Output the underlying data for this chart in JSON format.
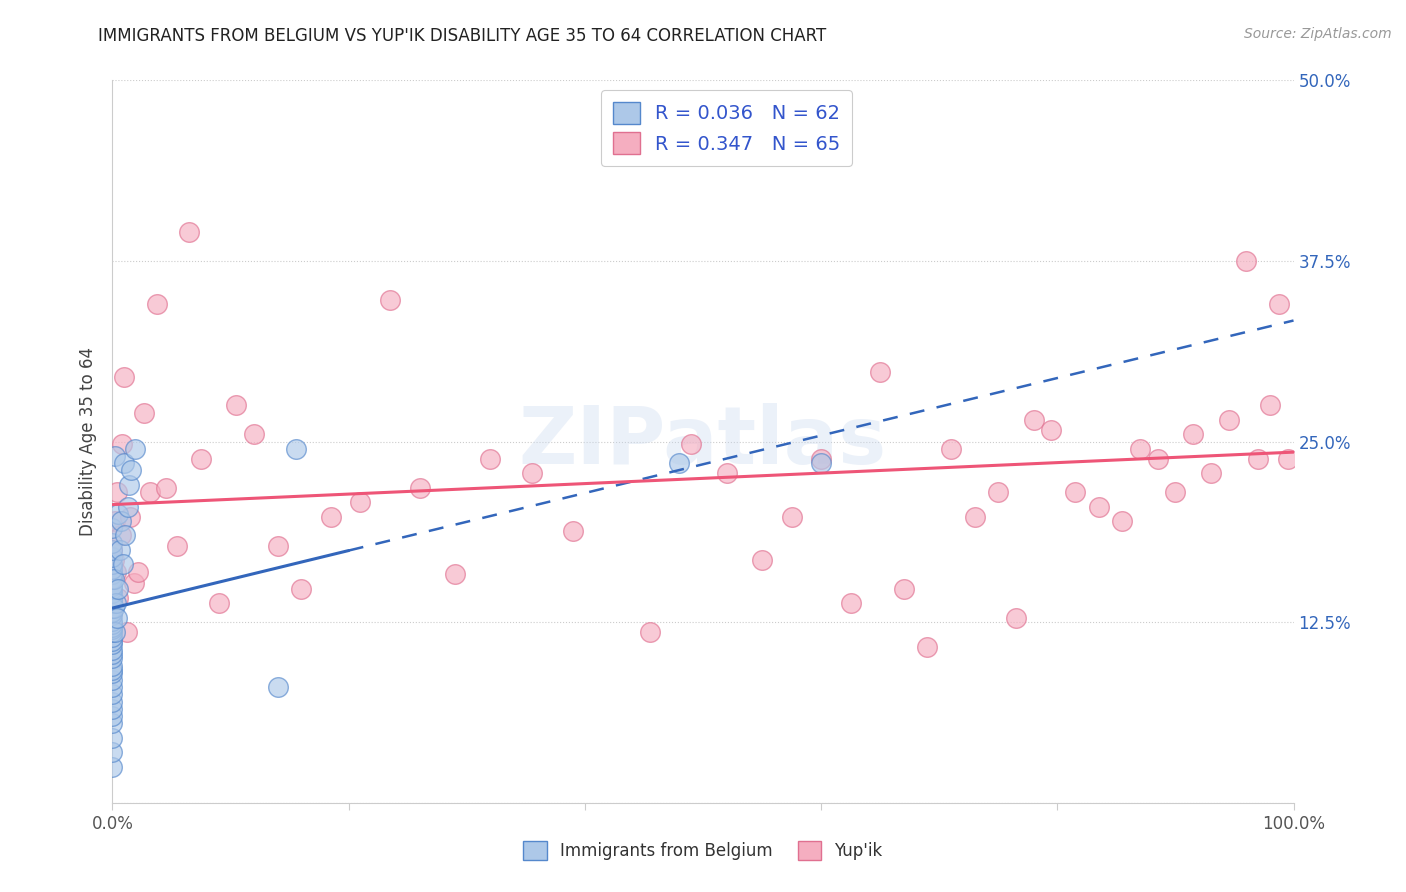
{
  "title": "IMMIGRANTS FROM BELGIUM VS YUP'IK DISABILITY AGE 35 TO 64 CORRELATION CHART",
  "source": "Source: ZipAtlas.com",
  "ylabel": "Disability Age 35 to 64",
  "xlim": [
    0,
    1.0
  ],
  "ylim": [
    0,
    0.5
  ],
  "xticks": [
    0.0,
    0.2,
    0.4,
    0.6,
    0.8,
    1.0
  ],
  "xticklabels": [
    "0.0%",
    "",
    "",
    "",
    "",
    "100.0%"
  ],
  "yticks": [
    0.0,
    0.125,
    0.25,
    0.375,
    0.5
  ],
  "yticklabels": [
    "",
    "12.5%",
    "25.0%",
    "37.5%",
    "50.0%"
  ],
  "belgium_R": 0.036,
  "belgium_N": 62,
  "yupik_R": 0.347,
  "yupik_N": 65,
  "belgium_color": "#adc8e8",
  "yupik_color": "#f5aec0",
  "belgium_edge": "#5588cc",
  "yupik_edge": "#e07090",
  "belgium_line_color": "#3366bb",
  "yupik_line_color": "#ee5577",
  "watermark": "ZIPatlas",
  "belgium_x": [
    0.0,
    0.0,
    0.0,
    0.0,
    0.0,
    0.0,
    0.0,
    0.0,
    0.0,
    0.0,
    0.0,
    0.0,
    0.0,
    0.0,
    0.0,
    0.0,
    0.0,
    0.0,
    0.0,
    0.0,
    0.0,
    0.0,
    0.0,
    0.0,
    0.0,
    0.0,
    0.0,
    0.0,
    0.0,
    0.0,
    0.0,
    0.0,
    0.0,
    0.0,
    0.0,
    0.0,
    0.0,
    0.0,
    0.0,
    0.0,
    0.0,
    0.001,
    0.001,
    0.002,
    0.002,
    0.003,
    0.004,
    0.005,
    0.005,
    0.006,
    0.007,
    0.009,
    0.01,
    0.011,
    0.013,
    0.014,
    0.016,
    0.019,
    0.14,
    0.155,
    0.48,
    0.6
  ],
  "belgium_y": [
    0.025,
    0.035,
    0.045,
    0.055,
    0.06,
    0.065,
    0.07,
    0.075,
    0.08,
    0.085,
    0.09,
    0.092,
    0.095,
    0.1,
    0.103,
    0.106,
    0.11,
    0.112,
    0.115,
    0.118,
    0.12,
    0.122,
    0.124,
    0.126,
    0.13,
    0.132,
    0.135,
    0.138,
    0.14,
    0.142,
    0.145,
    0.148,
    0.15,
    0.155,
    0.158,
    0.162,
    0.165,
    0.17,
    0.175,
    0.18,
    0.19,
    0.135,
    0.155,
    0.118,
    0.24,
    0.138,
    0.128,
    0.2,
    0.148,
    0.175,
    0.195,
    0.165,
    0.235,
    0.185,
    0.205,
    0.22,
    0.23,
    0.245,
    0.08,
    0.245,
    0.235,
    0.235
  ],
  "yupik_x": [
    0.0,
    0.0,
    0.001,
    0.002,
    0.003,
    0.004,
    0.005,
    0.007,
    0.008,
    0.01,
    0.012,
    0.015,
    0.018,
    0.022,
    0.027,
    0.032,
    0.038,
    0.045,
    0.055,
    0.065,
    0.075,
    0.09,
    0.105,
    0.12,
    0.14,
    0.16,
    0.185,
    0.21,
    0.235,
    0.26,
    0.29,
    0.32,
    0.355,
    0.39,
    0.425,
    0.455,
    0.49,
    0.52,
    0.55,
    0.575,
    0.6,
    0.625,
    0.65,
    0.67,
    0.69,
    0.71,
    0.73,
    0.75,
    0.765,
    0.78,
    0.795,
    0.815,
    0.835,
    0.855,
    0.87,
    0.885,
    0.9,
    0.915,
    0.93,
    0.945,
    0.96,
    0.97,
    0.98,
    0.988,
    0.995
  ],
  "yupik_y": [
    0.155,
    0.175,
    0.168,
    0.195,
    0.16,
    0.215,
    0.142,
    0.185,
    0.248,
    0.295,
    0.118,
    0.198,
    0.152,
    0.16,
    0.27,
    0.215,
    0.345,
    0.218,
    0.178,
    0.395,
    0.238,
    0.138,
    0.275,
    0.255,
    0.178,
    0.148,
    0.198,
    0.208,
    0.348,
    0.218,
    0.158,
    0.238,
    0.228,
    0.188,
    0.458,
    0.118,
    0.248,
    0.228,
    0.168,
    0.198,
    0.238,
    0.138,
    0.298,
    0.148,
    0.108,
    0.245,
    0.198,
    0.215,
    0.128,
    0.265,
    0.258,
    0.215,
    0.205,
    0.195,
    0.245,
    0.238,
    0.215,
    0.255,
    0.228,
    0.265,
    0.375,
    0.238,
    0.275,
    0.345,
    0.238
  ]
}
